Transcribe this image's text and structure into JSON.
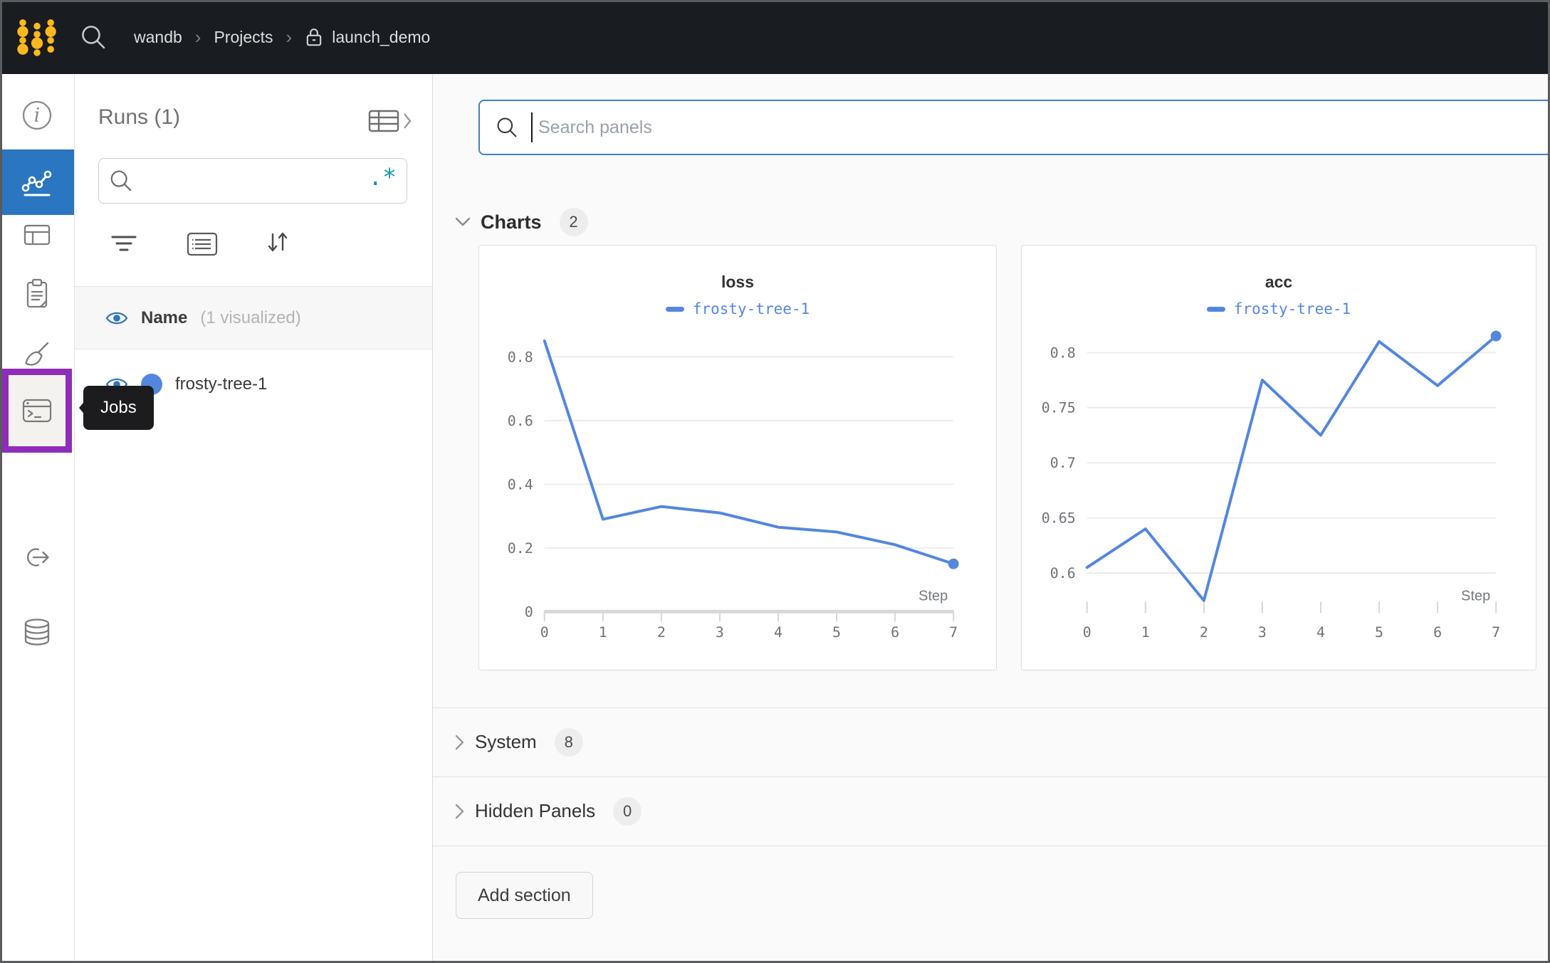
{
  "navbar": {
    "breadcrumb": {
      "items": [
        "wandb",
        "Projects",
        "launch_demo"
      ],
      "separator": "›"
    }
  },
  "rail": {
    "tooltip": "Jobs"
  },
  "runs_panel": {
    "title": "Runs (1)",
    "search_value": "",
    "regex_glyph": ".*",
    "header_name": "Name",
    "header_note": "(1 visualized)",
    "runs": [
      {
        "name": "frosty-tree-1",
        "color": "#5387dd"
      }
    ]
  },
  "main": {
    "panel_search_placeholder": "Search panels",
    "sections": {
      "charts": {
        "label": "Charts",
        "count": "2"
      },
      "system": {
        "label": "System",
        "count": "8"
      },
      "hidden": {
        "label": "Hidden Panels",
        "count": "0"
      }
    },
    "add_section": "Add section"
  },
  "chart_data": [
    {
      "type": "line",
      "title": "loss",
      "x": [
        0,
        1,
        2,
        3,
        4,
        5,
        6,
        7
      ],
      "xlabel": "Step",
      "series": [
        {
          "name": "frosty-tree-1",
          "color": "#5387dd",
          "values": [
            0.85,
            0.29,
            0.33,
            0.31,
            0.265,
            0.25,
            0.21,
            0.15
          ]
        }
      ],
      "yticks": [
        0,
        0.2,
        0.4,
        0.6,
        0.8
      ],
      "ylim": [
        0,
        0.9
      ],
      "show_baseline": true,
      "grid": true,
      "legend_position": "top",
      "end_marker": true
    },
    {
      "type": "line",
      "title": "acc",
      "x": [
        0,
        1,
        2,
        3,
        4,
        5,
        6,
        7
      ],
      "xlabel": "Step",
      "series": [
        {
          "name": "frosty-tree-1",
          "color": "#5387dd",
          "values": [
            0.605,
            0.64,
            0.575,
            0.775,
            0.725,
            0.81,
            0.77,
            0.815
          ]
        }
      ],
      "yticks": [
        0.6,
        0.65,
        0.7,
        0.75,
        0.8
      ],
      "ylim": [
        0.565,
        0.825
      ],
      "show_baseline": false,
      "grid": true,
      "legend_position": "top",
      "end_marker": true
    }
  ],
  "colors": {
    "accent_blue": "#2b76c0",
    "run_blue": "#5387dd",
    "highlight_purple": "#8f2cba",
    "regex_teal": "#1099ad",
    "navbar_bg": "#191c20",
    "search_focus_blue": "#3f82ca"
  }
}
